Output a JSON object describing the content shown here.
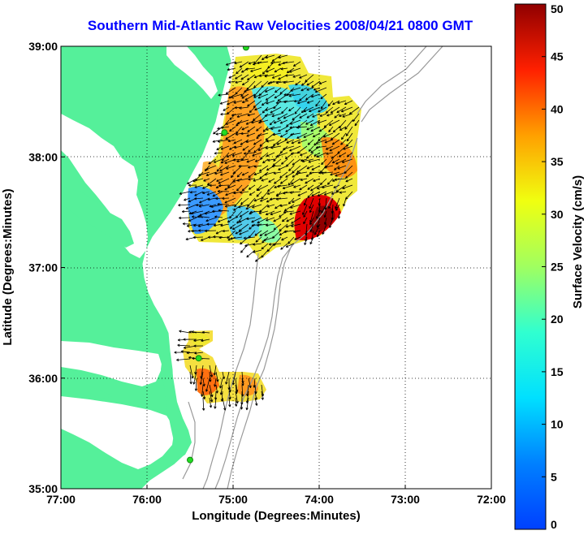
{
  "title": "Southern Mid-Atlantic Raw Velocities 2008/04/21 0800 GMT",
  "axes": {
    "x_label": "Longitude (Degrees:Minutes)",
    "y_label": "Latitude (Degrees:Minutes)",
    "x_ticks": [
      {
        "value": -77,
        "label": "77:00"
      },
      {
        "value": -76,
        "label": "76:00"
      },
      {
        "value": -75,
        "label": "75:00"
      },
      {
        "value": -74,
        "label": "74:00"
      },
      {
        "value": -73,
        "label": "73:00"
      },
      {
        "value": -72,
        "label": "72:00"
      }
    ],
    "y_ticks": [
      {
        "value": 39,
        "label": "39:00"
      },
      {
        "value": 38,
        "label": "38:00"
      },
      {
        "value": 37,
        "label": "37:00"
      },
      {
        "value": 36,
        "label": "36:00"
      },
      {
        "value": 35,
        "label": "35:00"
      }
    ],
    "x_range": [
      -77,
      -72
    ],
    "y_range": [
      35,
      39
    ],
    "grid": "dotted"
  },
  "colorbar": {
    "label": "Surface Velocity (cm/s)",
    "min": 0,
    "max": 50,
    "ticks": [
      {
        "value": 0,
        "label": "0"
      },
      {
        "value": 5,
        "label": "5"
      },
      {
        "value": 10,
        "label": "10"
      },
      {
        "value": 15,
        "label": "15"
      },
      {
        "value": 20,
        "label": "20"
      },
      {
        "value": 25,
        "label": "25"
      },
      {
        "value": 30,
        "label": "30"
      },
      {
        "value": 35,
        "label": "35"
      },
      {
        "value": 40,
        "label": "40"
      },
      {
        "value": 45,
        "label": "45"
      },
      {
        "value": 50,
        "label": "50"
      }
    ],
    "colormap": "jet"
  },
  "colors": {
    "land": "#55f09a",
    "ocean": "#ffffff",
    "bathymetry": "#999999",
    "arrow": "#000000",
    "station": "#22dd22",
    "title": "#0000ff"
  },
  "stations": [
    {
      "lon": -74.85,
      "lat": 38.99
    },
    {
      "lon": -75.1,
      "lat": 38.22
    },
    {
      "lon": -75.4,
      "lat": 36.18
    },
    {
      "lon": -75.5,
      "lat": 35.26
    }
  ],
  "velocity_field": {
    "regions": [
      {
        "lon_min": -75.5,
        "lon_max": -73.6,
        "lat_min": 37.25,
        "lat_max": 38.95
      },
      {
        "lon_min": -75.65,
        "lon_max": -74.8,
        "lat_min": 35.85,
        "lat_max": 36.42
      }
    ],
    "speed_range_cm_s": [
      3,
      50
    ],
    "dominant_direction": "southwest"
  }
}
